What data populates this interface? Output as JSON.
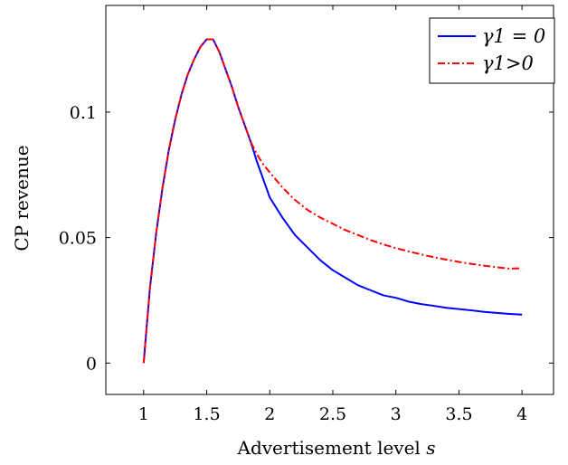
{
  "chart_data": {
    "type": "line",
    "title": "",
    "xlabel": "Advertisement level",
    "xlabel_var": "s",
    "ylabel": "CP revenue",
    "xlim": [
      0.7,
      4.25
    ],
    "ylim": [
      -0.0125,
      0.1425
    ],
    "x_ticks": [
      1,
      1.5,
      2,
      2.5,
      3,
      3.5,
      4
    ],
    "x_tick_labels": [
      "1",
      "1.5",
      "2",
      "2.5",
      "3",
      "3.5",
      "4"
    ],
    "y_ticks": [
      0,
      0.05,
      0.1
    ],
    "y_tick_labels": [
      "0",
      "0.05",
      "0.1"
    ],
    "grid": false,
    "legend_position": "top-right",
    "series": [
      {
        "name": "γ1 = 0",
        "color": "#0000ff",
        "dash": "solid",
        "x": [
          1.0,
          1.05,
          1.1,
          1.15,
          1.2,
          1.25,
          1.3,
          1.35,
          1.4,
          1.45,
          1.5,
          1.55,
          1.6,
          1.65,
          1.7,
          1.75,
          1.8,
          1.85,
          1.9,
          1.95,
          2.0,
          2.1,
          2.2,
          2.3,
          2.4,
          2.5,
          2.6,
          2.7,
          2.8,
          2.9,
          3.0,
          3.1,
          3.2,
          3.3,
          3.4,
          3.5,
          3.6,
          3.7,
          3.8,
          3.9,
          4.0
        ],
        "y": [
          0.0,
          0.03,
          0.052,
          0.07,
          0.085,
          0.097,
          0.107,
          0.115,
          0.121,
          0.126,
          0.129,
          0.129,
          0.124,
          0.117,
          0.11,
          0.102,
          0.095,
          0.088,
          0.08,
          0.073,
          0.066,
          0.058,
          0.051,
          0.046,
          0.041,
          0.037,
          0.034,
          0.031,
          0.029,
          0.027,
          0.026,
          0.0245,
          0.0235,
          0.0228,
          0.022,
          0.0215,
          0.021,
          0.0204,
          0.02,
          0.0196,
          0.0193
        ]
      },
      {
        "name": "γ1>0",
        "color": "#ff0000",
        "dash": "dash-dot",
        "x": [
          1.0,
          1.05,
          1.1,
          1.15,
          1.2,
          1.25,
          1.3,
          1.35,
          1.4,
          1.45,
          1.5,
          1.55,
          1.6,
          1.65,
          1.7,
          1.75,
          1.8,
          1.85,
          1.9,
          1.95,
          2.0,
          2.1,
          2.2,
          2.3,
          2.4,
          2.5,
          2.6,
          2.7,
          2.8,
          2.9,
          3.0,
          3.1,
          3.2,
          3.3,
          3.4,
          3.5,
          3.6,
          3.7,
          3.8,
          3.9,
          4.0
        ],
        "y": [
          0.0,
          0.03,
          0.052,
          0.07,
          0.085,
          0.097,
          0.107,
          0.115,
          0.121,
          0.126,
          0.129,
          0.129,
          0.124,
          0.117,
          0.11,
          0.102,
          0.095,
          0.088,
          0.083,
          0.079,
          0.076,
          0.07,
          0.065,
          0.061,
          0.058,
          0.0555,
          0.053,
          0.051,
          0.049,
          0.0473,
          0.0458,
          0.0445,
          0.0433,
          0.0422,
          0.0412,
          0.0403,
          0.0395,
          0.0388,
          0.0382,
          0.0376,
          0.0378
        ]
      }
    ]
  }
}
